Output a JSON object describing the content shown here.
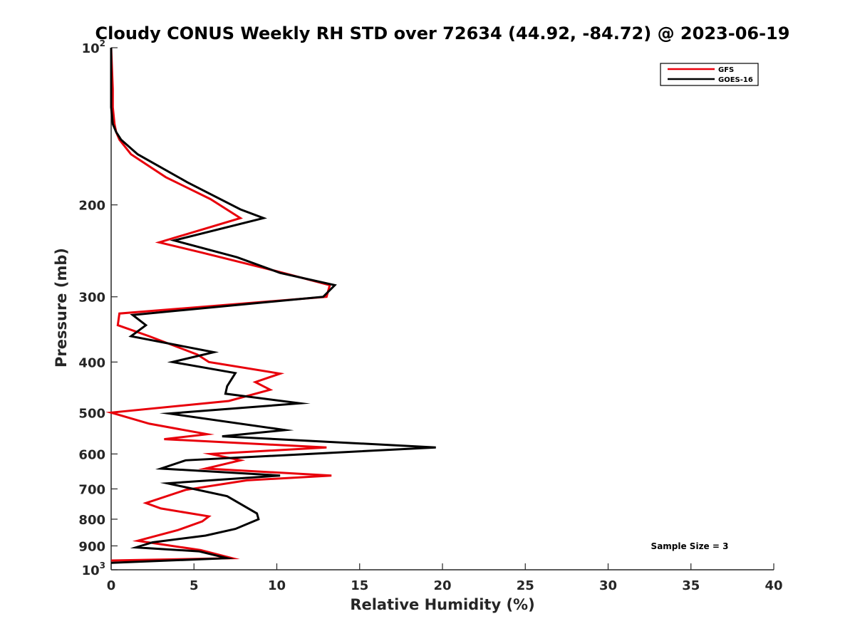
{
  "chart_data": {
    "type": "line",
    "title": "Cloudy CONUS Weekly RH STD over 72634 (44.92, -84.72) @ 2023-06-19",
    "xlabel": "Relative Humidity (%)",
    "ylabel": "Pressure (mb)",
    "xlim": [
      0,
      40
    ],
    "ylim": [
      100,
      1000
    ],
    "y_scale": "log",
    "y_reversed": true,
    "grid": false,
    "legend_position": "top-right",
    "x_ticks": [
      "0",
      "5",
      "10",
      "15",
      "20",
      "25",
      "30",
      "35",
      "40"
    ],
    "y_ticks": [
      {
        "value": 100,
        "base": "10",
        "exp": "2"
      },
      {
        "value": 200,
        "label": "200"
      },
      {
        "value": 300,
        "label": "300"
      },
      {
        "value": 400,
        "label": "400"
      },
      {
        "value": 500,
        "label": "500"
      },
      {
        "value": 600,
        "label": "600"
      },
      {
        "value": 700,
        "label": "700"
      },
      {
        "value": 800,
        "label": "800"
      },
      {
        "value": 900,
        "label": "900"
      },
      {
        "value": 1000,
        "base": "10",
        "exp": "3"
      }
    ],
    "annotation": "Sample Size = 3",
    "series": [
      {
        "name": "GFS",
        "color": "#e8000b",
        "points": [
          [
            0.0,
            100
          ],
          [
            0.1,
            120
          ],
          [
            0.1,
            130
          ],
          [
            0.2,
            140
          ],
          [
            0.3,
            145
          ],
          [
            0.5,
            150
          ],
          [
            1.2,
            160
          ],
          [
            3.3,
            177
          ],
          [
            6.0,
            195
          ],
          [
            7.8,
            212
          ],
          [
            2.9,
            236
          ],
          [
            5.5,
            247
          ],
          [
            10.0,
            268
          ],
          [
            13.2,
            285
          ],
          [
            13.0,
            300
          ],
          [
            0.5,
            323
          ],
          [
            0.4,
            340
          ],
          [
            2.3,
            357
          ],
          [
            5.2,
            387
          ],
          [
            5.9,
            400
          ],
          [
            10.2,
            421
          ],
          [
            8.7,
            437
          ],
          [
            9.6,
            452
          ],
          [
            7.1,
            475
          ],
          [
            0.0,
            500
          ],
          [
            2.3,
            525
          ],
          [
            5.8,
            550
          ],
          [
            3.2,
            562
          ],
          [
            13.0,
            583
          ],
          [
            6.0,
            600
          ],
          [
            7.8,
            617
          ],
          [
            5.7,
            640
          ],
          [
            13.3,
            660
          ],
          [
            8.2,
            674
          ],
          [
            4.5,
            703
          ],
          [
            2.1,
            745
          ],
          [
            3.0,
            763
          ],
          [
            5.9,
            790
          ],
          [
            5.5,
            808
          ],
          [
            4.0,
            840
          ],
          [
            1.6,
            880
          ],
          [
            5.4,
            917
          ],
          [
            7.3,
            950
          ],
          [
            0.0,
            960
          ]
        ]
      },
      {
        "name": "GOES-16",
        "color": "#000000",
        "points": [
          [
            0.0,
            100
          ],
          [
            0.0,
            120
          ],
          [
            0.0,
            130
          ],
          [
            0.1,
            140
          ],
          [
            0.3,
            145
          ],
          [
            0.6,
            150
          ],
          [
            1.6,
            160
          ],
          [
            4.6,
            181
          ],
          [
            7.8,
            204
          ],
          [
            9.2,
            212
          ],
          [
            3.8,
            234
          ],
          [
            7.6,
            252
          ],
          [
            10.2,
            270
          ],
          [
            13.5,
            285
          ],
          [
            12.8,
            300
          ],
          [
            1.3,
            325
          ],
          [
            2.1,
            340
          ],
          [
            1.2,
            357
          ],
          [
            6.2,
            383
          ],
          [
            3.7,
            400
          ],
          [
            7.5,
            420
          ],
          [
            7.0,
            445
          ],
          [
            6.9,
            460
          ],
          [
            11.4,
            480
          ],
          [
            3.5,
            502
          ],
          [
            10.5,
            540
          ],
          [
            6.7,
            555
          ],
          [
            19.6,
            583
          ],
          [
            4.5,
            617
          ],
          [
            3.0,
            640
          ],
          [
            10.2,
            660
          ],
          [
            3.4,
            683
          ],
          [
            7.0,
            723
          ],
          [
            8.8,
            780
          ],
          [
            8.9,
            800
          ],
          [
            7.5,
            835
          ],
          [
            5.7,
            860
          ],
          [
            2.5,
            886
          ],
          [
            1.5,
            906
          ],
          [
            5.3,
            922
          ],
          [
            7.0,
            950
          ],
          [
            0.0,
            970
          ]
        ]
      }
    ]
  }
}
